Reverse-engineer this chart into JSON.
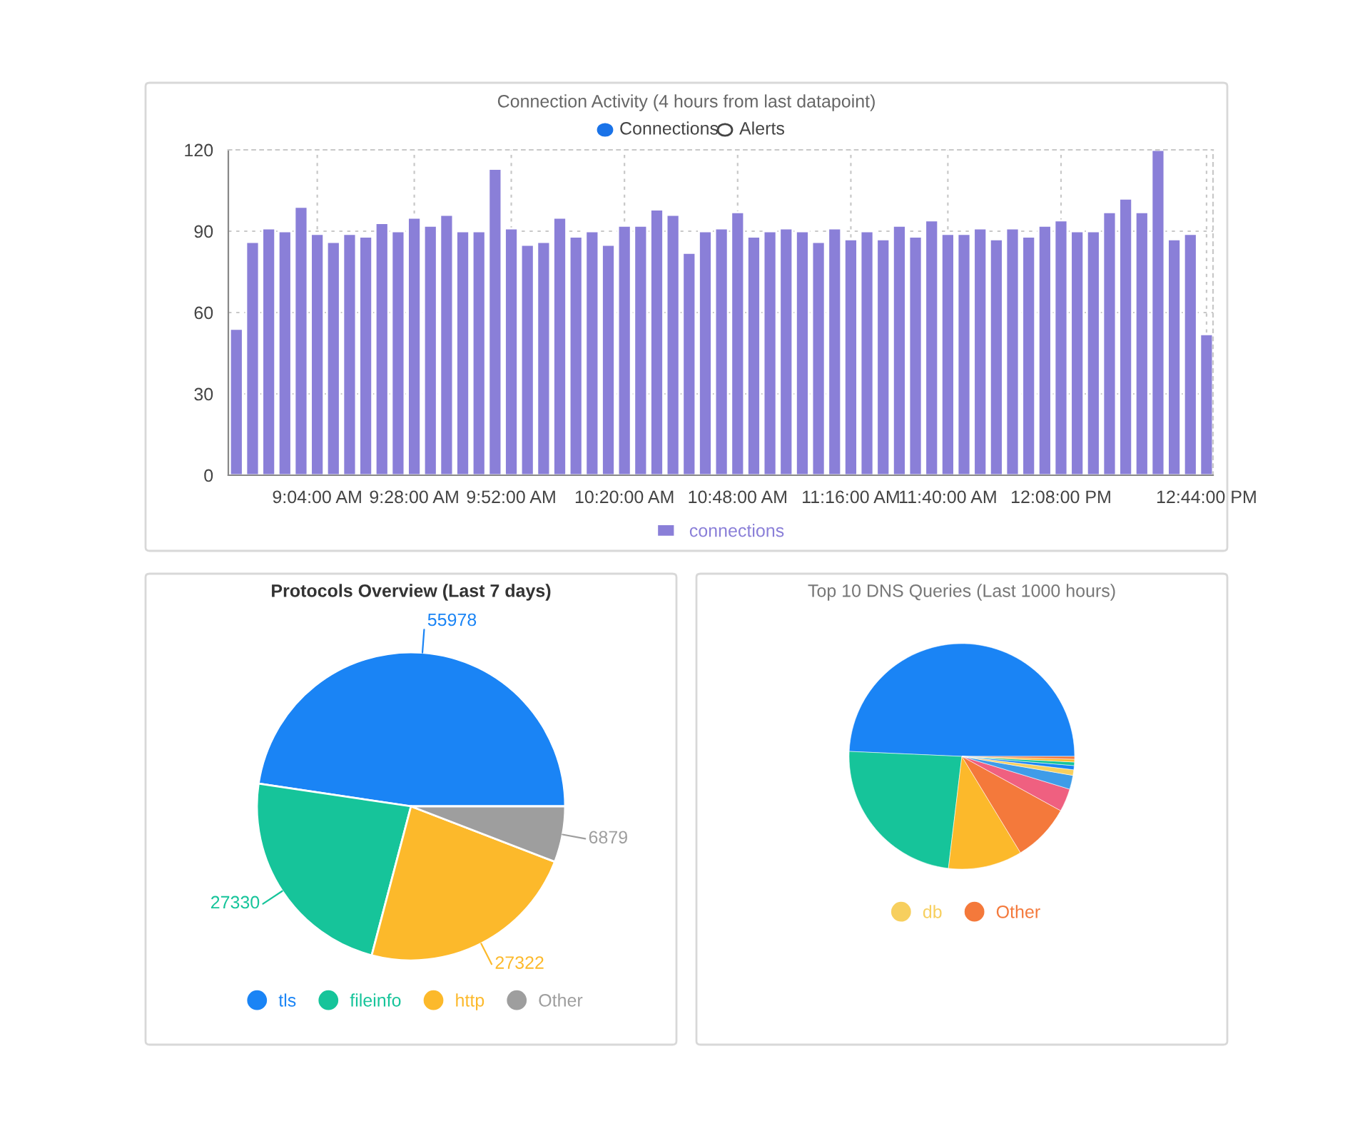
{
  "chart_data": [
    {
      "type": "bar",
      "title": "Connection Activity (4 hours from last datapoint)",
      "annotations": [
        "Connections",
        "Alerts"
      ],
      "x": [
        8.7333,
        8.8,
        8.8667,
        8.9333,
        9.0,
        9.0667,
        9.1333,
        9.2,
        9.2667,
        9.3333,
        9.4,
        9.4667,
        9.5333,
        9.6,
        9.6667,
        9.7333,
        9.8,
        9.8667,
        9.9333,
        10.0,
        10.0667,
        10.1333,
        10.2,
        10.2667,
        10.3333,
        10.4,
        10.4667,
        10.5333,
        10.6,
        10.6667,
        10.7333,
        10.8,
        10.8667,
        10.9333,
        11.0,
        11.0667,
        11.1333,
        11.2,
        11.2667,
        11.3333,
        11.4,
        11.4667,
        11.5333,
        11.6,
        11.6667,
        11.7333,
        11.8,
        11.8667,
        11.9333,
        12.0,
        12.0667,
        12.1333,
        12.2,
        12.2667,
        12.3333,
        12.4,
        12.4667,
        12.5333,
        12.6,
        12.6667,
        12.7333
      ],
      "series": [
        {
          "name": "connections",
          "color": "#8a7fd8",
          "values": [
            54,
            86,
            91,
            90,
            99,
            89,
            86,
            89,
            88,
            93,
            90,
            95,
            92,
            96,
            90,
            90,
            113,
            91,
            85,
            86,
            95,
            88,
            90,
            85,
            92,
            92,
            98,
            96,
            82,
            90,
            91,
            97,
            88,
            90,
            91,
            90,
            86,
            91,
            87,
            90,
            87,
            92,
            88,
            94,
            89,
            89,
            91,
            87,
            91,
            88,
            92,
            94,
            90,
            90,
            97,
            102,
            97,
            120,
            87,
            89,
            52
          ]
        }
      ],
      "xlim": [
        8.7,
        12.76
      ],
      "ylim": [
        0,
        120
      ],
      "yticks": [
        0,
        30,
        60,
        90,
        120
      ],
      "xticks": [
        {
          "value": 9.0667,
          "label": "9:04:00 AM"
        },
        {
          "value": 9.4667,
          "label": "9:28:00 AM"
        },
        {
          "value": 9.8667,
          "label": "9:52:00 AM"
        },
        {
          "value": 10.3333,
          "label": "10:20:00 AM"
        },
        {
          "value": 10.8,
          "label": "10:48:00 AM"
        },
        {
          "value": 11.2667,
          "label": "11:16:00 AM"
        },
        {
          "value": 11.6667,
          "label": "11:40:00 AM"
        },
        {
          "value": 12.1333,
          "label": "12:08:00 PM"
        },
        {
          "value": 12.7333,
          "label": "12:44:00 PM"
        }
      ],
      "grid": true,
      "legend": "bottom"
    },
    {
      "type": "pie",
      "title": "Protocols Overview (Last 7 days)",
      "categories": [
        "tls",
        "fileinfo",
        "http",
        "Other"
      ],
      "values": [
        55978,
        27330,
        27322,
        6879
      ],
      "colors": [
        "#1a84f5",
        "#16c49a",
        "#fcb92b",
        "#9e9e9e"
      ],
      "data_labels": true,
      "legend": "bottom"
    },
    {
      "type": "pie",
      "title": "Top 10 DNS Queries (Last 1000 hours)",
      "categories": [
        null,
        null,
        null,
        null,
        null,
        null,
        "db",
        null,
        null,
        null,
        "Other"
      ],
      "values": [
        49.3,
        23.8,
        10.6,
        8.3,
        3.3,
        2.0,
        0.8,
        0.6,
        0.5,
        0.4,
        0.4
      ],
      "colors": [
        "#1a84f5",
        "#16c49a",
        "#fcb92b",
        "#f4793b",
        "#ef6080",
        "#3f9ce8",
        "#f7cf5e",
        "#1a84f5",
        "#16c49a",
        "#fcb92b",
        "#f4793b"
      ],
      "legend": "bottom"
    }
  ]
}
